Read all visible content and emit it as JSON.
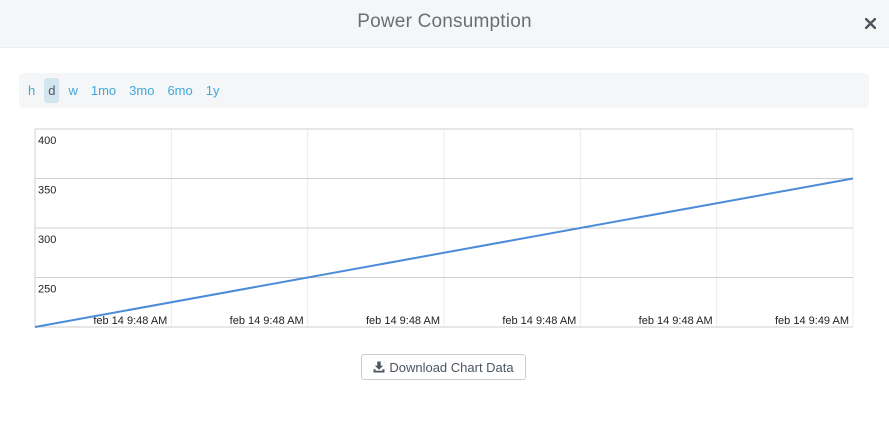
{
  "modal": {
    "title": "Power Consumption",
    "close_icon": "close-icon"
  },
  "range_buttons": [
    {
      "label": "h",
      "active": false
    },
    {
      "label": "d",
      "active": true
    },
    {
      "label": "w",
      "active": false
    },
    {
      "label": "1mo",
      "active": false
    },
    {
      "label": "3mo",
      "active": false
    },
    {
      "label": "6mo",
      "active": false
    },
    {
      "label": "1y",
      "active": false
    }
  ],
  "download": {
    "label": "Download Chart Data",
    "icon": "download-icon"
  },
  "colors": {
    "line": "#4a8cd8",
    "accent": "#3fa8d8",
    "active_bg": "#d3e6ef"
  },
  "chart_data": {
    "type": "line",
    "title": "",
    "xlabel": "",
    "ylabel": "",
    "grid": true,
    "ylim": [
      200,
      400
    ],
    "yticks": [
      250,
      300,
      350,
      400
    ],
    "xtick_labels": [
      "feb 14 9:48 AM",
      "feb 14 9:48 AM",
      "feb 14 9:48 AM",
      "feb 14 9:48 AM",
      "feb 14 9:48 AM",
      "feb 14 9:49 AM"
    ],
    "series": [
      {
        "values": [
          200,
          350
        ]
      }
    ]
  }
}
